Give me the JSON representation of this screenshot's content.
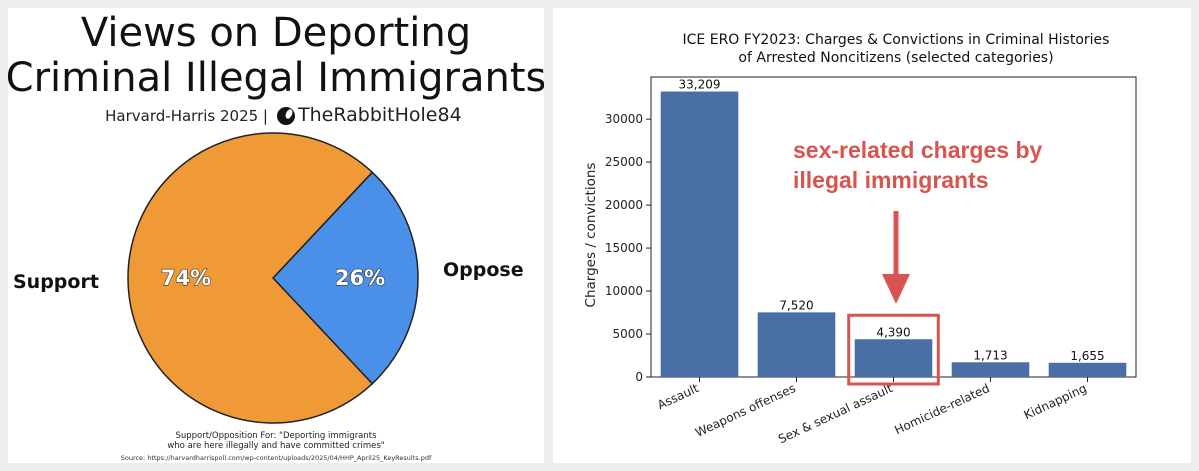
{
  "chart_data": [
    {
      "type": "pie",
      "title_lines": [
        "Views on Deporting",
        "Criminal Illegal Immigrants"
      ],
      "subtitle": "Harvard-Harris 2025 | ",
      "handle": "TheRabbitHole84",
      "slices": [
        {
          "label": "Support",
          "value": 74,
          "pct_label": "74%",
          "color": "#f09a37"
        },
        {
          "label": "Oppose",
          "value": 26,
          "pct_label": "26%",
          "color": "#4a90e8"
        }
      ],
      "caption_lines": [
        "Support/Opposition For: \"Deporting immigrants",
        "who are here illegally and have committed crimes\""
      ],
      "source": "Source: https://harvardharrispoll.com/wp-content/uploads/2025/04/HHP_April25_KeyResults.pdf"
    },
    {
      "type": "bar",
      "title_lines": [
        "ICE ERO FY2023: Charges & Convictions in Criminal Histories",
        "of Arrested Noncitizens (selected categories)"
      ],
      "categories": [
        "Assault",
        "Weapons offenses",
        "Sex & sexual assault",
        "Homicide-related",
        "Kidnapping"
      ],
      "values": [
        33209,
        7520,
        4390,
        1713,
        1655
      ],
      "value_labels": [
        "33,209",
        "7,520",
        "4,390",
        "1,713",
        "1,655"
      ],
      "ylabel": "Charges / convictions",
      "ylim": [
        0,
        34900
      ],
      "yticks": [
        0,
        5000,
        10000,
        15000,
        20000,
        25000,
        30000
      ],
      "bar_color": "#4a6fa5",
      "highlight_category": "Sex & sexual assault",
      "highlight_color": "#d9534f",
      "annotation_lines": [
        "sex-related charges by",
        "illegal immigrants"
      ]
    }
  ]
}
